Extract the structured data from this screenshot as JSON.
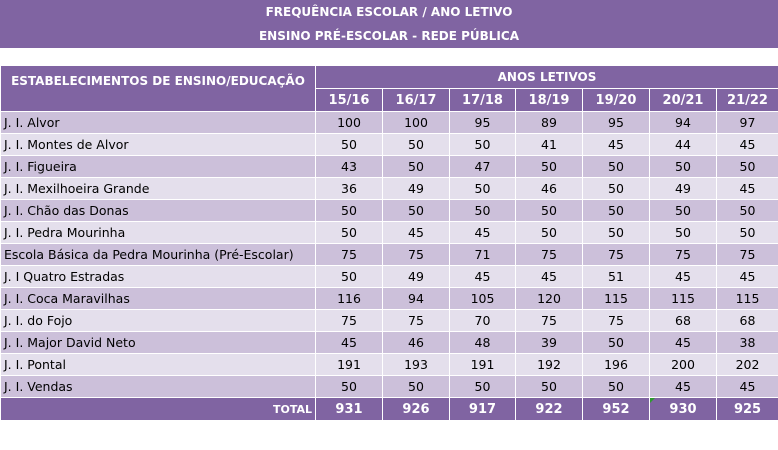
{
  "banner": {
    "title": "FREQUÊNCIA ESCOLAR  / ANO LETIVO",
    "subtitle": "ENSINO PRÉ-ESCOLAR - REDE PÚBLICA"
  },
  "table": {
    "estab_header": "ESTABELECIMENTOS DE ENSINO/EDUCAÇÃO",
    "years_header": "ANOS LETIVOS",
    "years": [
      "15/16",
      "16/17",
      "17/18",
      "18/19",
      "19/20",
      "20/21",
      "21/22"
    ],
    "rows": [
      {
        "name": "J. I. Alvor",
        "values": [
          "100",
          "100",
          "95",
          "89",
          "95",
          "94",
          "97"
        ]
      },
      {
        "name": "J. I. Montes de Alvor",
        "values": [
          "50",
          "50",
          "50",
          "41",
          "45",
          "44",
          "45"
        ]
      },
      {
        "name": "J. I. Figueira",
        "values": [
          "43",
          "50",
          "47",
          "50",
          "50",
          "50",
          "50"
        ]
      },
      {
        "name": "J. I. Mexilhoeira Grande",
        "values": [
          "36",
          "49",
          "50",
          "46",
          "50",
          "49",
          "45"
        ]
      },
      {
        "name": "J. I. Chão das Donas",
        "values": [
          "50",
          "50",
          "50",
          "50",
          "50",
          "50",
          "50"
        ]
      },
      {
        "name": "J. I. Pedra Mourinha",
        "values": [
          "50",
          "45",
          "45",
          "50",
          "50",
          "50",
          "50"
        ]
      },
      {
        "name": "Escola Básica da Pedra Mourinha (Pré-Escolar)",
        "values": [
          "75",
          "75",
          "71",
          "75",
          "75",
          "75",
          "75"
        ]
      },
      {
        "name": "J. I  Quatro Estradas",
        "values": [
          "50",
          "49",
          "45",
          "45",
          "51",
          "45",
          "45"
        ]
      },
      {
        "name": "J. I. Coca Maravilhas",
        "values": [
          "116",
          "94",
          "105",
          "120",
          "115",
          "115",
          "115"
        ]
      },
      {
        "name": "J. I. do Fojo",
        "values": [
          "75",
          "75",
          "70",
          "75",
          "75",
          "68",
          "68"
        ]
      },
      {
        "name": "J. I. Major David Neto",
        "values": [
          "45",
          "46",
          "48",
          "39",
          "50",
          "45",
          "38"
        ]
      },
      {
        "name": "J. I. Pontal",
        "values": [
          "191",
          "193",
          "191",
          "192",
          "196",
          "200",
          "202"
        ]
      },
      {
        "name": "J. I. Vendas",
        "values": [
          "50",
          "50",
          "50",
          "50",
          "50",
          "45",
          "45"
        ]
      }
    ],
    "total_label": "TOTAL",
    "totals": [
      "931",
      "926",
      "917",
      "922",
      "952",
      "930",
      "925"
    ]
  },
  "colors": {
    "header": "#8064a2",
    "row_odd": "#ccc0da",
    "row_even": "#e4dfec"
  }
}
